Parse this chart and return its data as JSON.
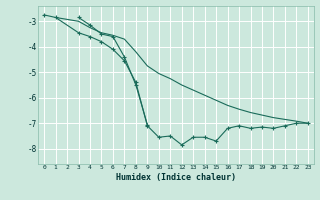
{
  "xlabel": "Humidex (Indice chaleur)",
  "bg_color": "#cce8dd",
  "grid_color": "#ffffff",
  "line_color": "#1a6b5a",
  "xlim": [
    -0.5,
    23.5
  ],
  "ylim": [
    -8.6,
    -2.4
  ],
  "yticks": [
    -3,
    -4,
    -5,
    -6,
    -7,
    -8
  ],
  "xticks": [
    0,
    1,
    2,
    3,
    4,
    5,
    6,
    7,
    8,
    9,
    10,
    11,
    12,
    13,
    14,
    15,
    16,
    17,
    18,
    19,
    20,
    21,
    22,
    23
  ],
  "line1_x": [
    0,
    1,
    3,
    4,
    5,
    6,
    7,
    8,
    9,
    10,
    11,
    12,
    13,
    14,
    15,
    16,
    17,
    18,
    19,
    20,
    21,
    22,
    23
  ],
  "line1_y": [
    -2.75,
    -2.85,
    -3.45,
    -3.6,
    -3.8,
    -4.1,
    -4.55,
    -5.4,
    -7.1,
    -7.55,
    -7.5,
    -7.85,
    -7.55,
    -7.55,
    -7.7,
    -7.2,
    -7.1,
    -7.2,
    -7.15,
    -7.2,
    -7.1,
    -7.0,
    -7.0
  ],
  "line2_x": [
    1,
    3,
    4,
    5,
    6,
    7,
    8,
    9,
    10,
    11,
    12,
    13,
    14,
    15,
    16,
    17,
    18,
    19,
    20,
    21,
    22,
    23
  ],
  "line2_y": [
    -2.85,
    -3.0,
    -3.25,
    -3.45,
    -3.55,
    -3.7,
    -4.2,
    -4.75,
    -5.05,
    -5.25,
    -5.5,
    -5.7,
    -5.9,
    -6.1,
    -6.3,
    -6.45,
    -6.58,
    -6.68,
    -6.78,
    -6.85,
    -6.92,
    -7.0
  ],
  "line3_x": [
    3,
    4,
    5,
    6,
    7,
    8,
    9
  ],
  "line3_y": [
    -2.85,
    -3.15,
    -3.5,
    -3.6,
    -4.4,
    -5.5,
    -7.05
  ]
}
